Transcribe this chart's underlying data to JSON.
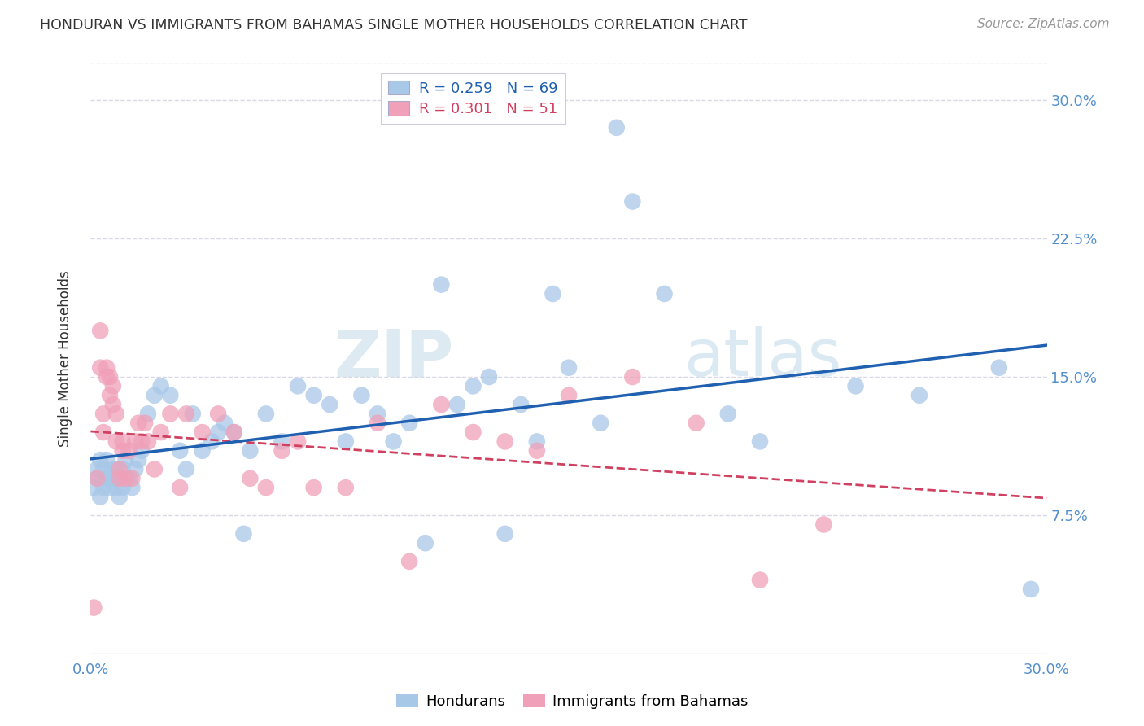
{
  "title": "HONDURAN VS IMMIGRANTS FROM BAHAMAS SINGLE MOTHER HOUSEHOLDS CORRELATION CHART",
  "source": "Source: ZipAtlas.com",
  "ylabel": "Single Mother Households",
  "ytick_labels": [
    "7.5%",
    "15.0%",
    "22.5%",
    "30.0%"
  ],
  "ytick_values": [
    0.075,
    0.15,
    0.225,
    0.3
  ],
  "xlim": [
    0.0,
    0.3
  ],
  "ylim": [
    0.0,
    0.32
  ],
  "legend_blue_r": "0.259",
  "legend_blue_n": "69",
  "legend_pink_r": "0.301",
  "legend_pink_n": "51",
  "legend_blue_label": "Hondurans",
  "legend_pink_label": "Immigrants from Bahamas",
  "blue_color": "#a8c8e8",
  "pink_color": "#f0a0b8",
  "blue_line_color": "#2060b0",
  "pink_line_color": "#d04060",
  "grid_color": "#d8d8e8",
  "watermark_color": "#dce8f0",
  "hondurans_x": [
    0.001,
    0.002,
    0.002,
    0.003,
    0.003,
    0.004,
    0.004,
    0.005,
    0.005,
    0.006,
    0.006,
    0.007,
    0.007,
    0.008,
    0.008,
    0.009,
    0.009,
    0.01,
    0.01,
    0.011,
    0.012,
    0.013,
    0.014,
    0.015,
    0.016,
    0.018,
    0.02,
    0.022,
    0.025,
    0.028,
    0.03,
    0.032,
    0.035,
    0.038,
    0.04,
    0.042,
    0.045,
    0.048,
    0.05,
    0.055,
    0.06,
    0.065,
    0.07,
    0.075,
    0.08,
    0.085,
    0.09,
    0.095,
    0.1,
    0.105,
    0.11,
    0.115,
    0.12,
    0.125,
    0.13,
    0.135,
    0.14,
    0.145,
    0.15,
    0.16,
    0.165,
    0.17,
    0.18,
    0.2,
    0.21,
    0.24,
    0.26,
    0.285,
    0.295
  ],
  "hondurans_y": [
    0.09,
    0.095,
    0.1,
    0.085,
    0.105,
    0.09,
    0.1,
    0.095,
    0.105,
    0.09,
    0.095,
    0.1,
    0.095,
    0.09,
    0.1,
    0.085,
    0.095,
    0.1,
    0.09,
    0.105,
    0.095,
    0.09,
    0.1,
    0.105,
    0.11,
    0.13,
    0.14,
    0.145,
    0.14,
    0.11,
    0.1,
    0.13,
    0.11,
    0.115,
    0.12,
    0.125,
    0.12,
    0.065,
    0.11,
    0.13,
    0.115,
    0.145,
    0.14,
    0.135,
    0.115,
    0.14,
    0.13,
    0.115,
    0.125,
    0.06,
    0.2,
    0.135,
    0.145,
    0.15,
    0.065,
    0.135,
    0.115,
    0.195,
    0.155,
    0.125,
    0.285,
    0.245,
    0.195,
    0.13,
    0.115,
    0.145,
    0.14,
    0.155,
    0.035
  ],
  "bahamas_x": [
    0.001,
    0.002,
    0.003,
    0.003,
    0.004,
    0.004,
    0.005,
    0.005,
    0.006,
    0.006,
    0.007,
    0.007,
    0.008,
    0.008,
    0.009,
    0.009,
    0.01,
    0.01,
    0.011,
    0.012,
    0.013,
    0.014,
    0.015,
    0.016,
    0.017,
    0.018,
    0.02,
    0.022,
    0.025,
    0.028,
    0.03,
    0.035,
    0.04,
    0.045,
    0.05,
    0.055,
    0.06,
    0.065,
    0.07,
    0.08,
    0.09,
    0.1,
    0.11,
    0.12,
    0.13,
    0.14,
    0.15,
    0.17,
    0.19,
    0.21,
    0.23
  ],
  "bahamas_y": [
    0.025,
    0.095,
    0.155,
    0.175,
    0.12,
    0.13,
    0.15,
    0.155,
    0.14,
    0.15,
    0.135,
    0.145,
    0.115,
    0.13,
    0.095,
    0.1,
    0.11,
    0.115,
    0.095,
    0.11,
    0.095,
    0.115,
    0.125,
    0.115,
    0.125,
    0.115,
    0.1,
    0.12,
    0.13,
    0.09,
    0.13,
    0.12,
    0.13,
    0.12,
    0.095,
    0.09,
    0.11,
    0.115,
    0.09,
    0.09,
    0.125,
    0.05,
    0.135,
    0.12,
    0.115,
    0.11,
    0.14,
    0.15,
    0.125,
    0.04,
    0.07
  ]
}
